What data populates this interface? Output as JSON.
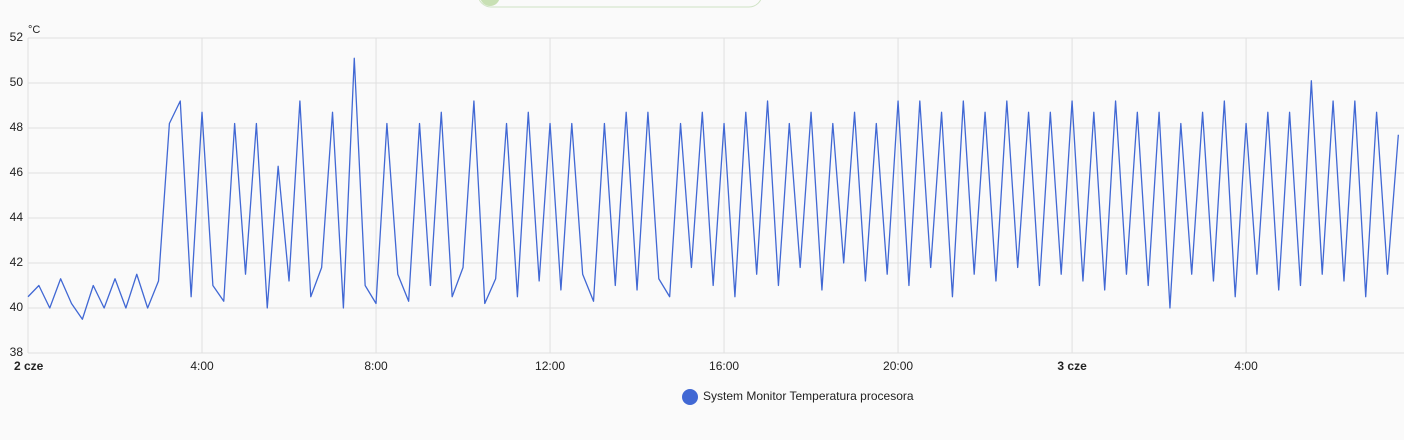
{
  "chart_data": {
    "type": "line",
    "y_label": "°C",
    "x": [
      0,
      0.25,
      0.5,
      0.75,
      1,
      1.25,
      1.5,
      1.75,
      2,
      2.25,
      2.5,
      2.75,
      3,
      3.25,
      3.5,
      3.75,
      4,
      4.25,
      4.5,
      4.75,
      5,
      5.25,
      5.5,
      5.75,
      6,
      6.25,
      6.5,
      6.75,
      7,
      7.25,
      7.5,
      7.75,
      8,
      8.25,
      8.5,
      8.75,
      9,
      9.25,
      9.5,
      9.75,
      10,
      10.25,
      10.5,
      10.75,
      11,
      11.25,
      11.5,
      11.75,
      12,
      12.25,
      12.5,
      12.75,
      13,
      13.25,
      13.5,
      13.75,
      14,
      14.25,
      14.5,
      14.75,
      15,
      15.25,
      15.5,
      15.75,
      16,
      16.25,
      16.5,
      16.75,
      17,
      17.25,
      17.5,
      17.75,
      18,
      18.25,
      18.5,
      18.75,
      19,
      19.25,
      19.5,
      19.75,
      20,
      20.25,
      20.5,
      20.75,
      21,
      21.25,
      21.5,
      21.75,
      22,
      22.25,
      22.5,
      22.75,
      23,
      23.25,
      23.5,
      23.75,
      24,
      24.25,
      24.5,
      24.75,
      25,
      25.25,
      25.5,
      25.75,
      26,
      26.25,
      26.5,
      26.75,
      27,
      27.25,
      27.5,
      27.75,
      28,
      28.25,
      28.5,
      28.75,
      29,
      29.25,
      29.5,
      29.75,
      30,
      30.25,
      30.5,
      30.75,
      31,
      31.25,
      31.5
    ],
    "series": [
      {
        "name": "System Monitor Temperatura procesora",
        "color": "#4168d4",
        "values": [
          40.5,
          41,
          40,
          41.3,
          40.2,
          39.5,
          41,
          40,
          41.3,
          40,
          41.5,
          40,
          41.2,
          48.2,
          49.2,
          40.5,
          48.7,
          41,
          40.3,
          48.2,
          41.5,
          48.2,
          40,
          46.3,
          41.2,
          49.2,
          40.5,
          41.8,
          48.7,
          40,
          51.1,
          41,
          40.2,
          48.2,
          41.5,
          40.3,
          48.2,
          41,
          48.7,
          40.5,
          41.8,
          49.2,
          40.2,
          41.3,
          48.2,
          40.5,
          48.7,
          41.2,
          48.2,
          40.8,
          48.2,
          41.5,
          40.3,
          48.2,
          41,
          48.7,
          40.8,
          48.7,
          41.3,
          40.5,
          48.2,
          41.8,
          48.7,
          41,
          48.2,
          40.5,
          48.7,
          41.5,
          49.2,
          41,
          48.2,
          41.8,
          48.7,
          40.8,
          48.2,
          42,
          48.7,
          41.2,
          48.2,
          41.5,
          49.2,
          41,
          49.2,
          41.8,
          48.7,
          40.5,
          49.2,
          41.5,
          48.7,
          41.2,
          49.2,
          41.8,
          48.7,
          41,
          48.7,
          41.5,
          49.2,
          41.2,
          48.7,
          40.8,
          49.2,
          41.5,
          48.7,
          41,
          48.7,
          40,
          48.2,
          41.5,
          48.7,
          41.2,
          49.2,
          40.5,
          48.2,
          41.5,
          48.7,
          40.8,
          48.7,
          41,
          50.1,
          41.5,
          49.2,
          41.2,
          49.2,
          40.5,
          48.7,
          41.5,
          47.7
        ]
      }
    ],
    "xlim": [
      0,
      31.63
    ],
    "xticks": [
      {
        "value": 0,
        "label": "2 cze"
      },
      {
        "value": 4,
        "label": "4:00"
      },
      {
        "value": 8,
        "label": "8:00"
      },
      {
        "value": 12,
        "label": "12:00"
      },
      {
        "value": 16,
        "label": "16:00"
      },
      {
        "value": 20,
        "label": "20:00"
      },
      {
        "value": 24,
        "label": "3 cze"
      },
      {
        "value": 28,
        "label": "4:00"
      }
    ],
    "ylim": [
      38,
      52
    ],
    "yticks": [
      38,
      40,
      42,
      44,
      46,
      48,
      50,
      52
    ],
    "grid": true
  }
}
